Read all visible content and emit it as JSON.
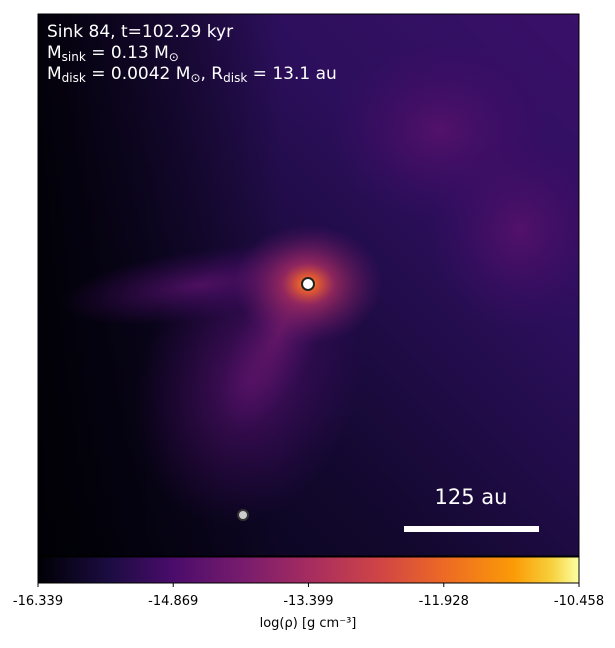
{
  "chart_data": {
    "type": "heatmap",
    "annotation_lines": [
      [
        "Sink 84, t=102.29 kyr"
      ],
      [
        "M",
        "sink",
        " = 0.13 M",
        "⊙"
      ],
      [
        "M",
        "disk",
        " = 0.0042 M",
        "⊙",
        ", R",
        "disk",
        " = 13.1 au"
      ]
    ],
    "scale_bar_label": "125 au",
    "colorbar_label": "log(ρ) [g cm⁻³]",
    "clim": [
      -16.339,
      -10.458
    ],
    "cticks": [
      -16.339,
      -14.869,
      -13.399,
      -11.928,
      -10.458
    ]
  }
}
